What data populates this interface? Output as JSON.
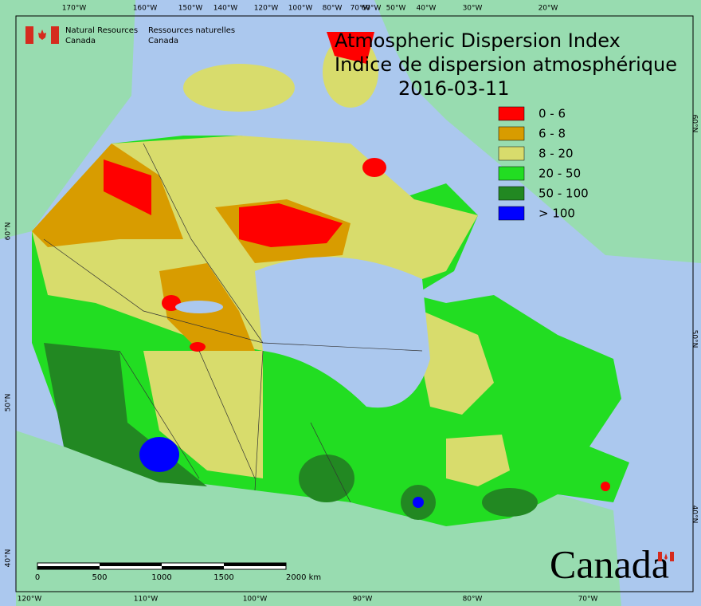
{
  "header": {
    "org_en_1": "Natural Resources",
    "org_en_2": "Canada",
    "org_fr_1": "Ressources naturelles",
    "org_fr_2": "Canada"
  },
  "title": {
    "line1": "Atmospheric Dispersion Index",
    "line2": "Indice de dispersion atmosphérique",
    "date": "2016-03-11"
  },
  "legend": [
    {
      "label": "0 - 6",
      "color": "#ff0000"
    },
    {
      "label": "6 - 8",
      "color": "#d89c00"
    },
    {
      "label": "8 - 20",
      "color": "#d8dc6c"
    },
    {
      "label": "20 - 50",
      "color": "#22dd22"
    },
    {
      "label": "50 - 100",
      "color": "#228822"
    },
    {
      "label": "> 100",
      "color": "#0000ff"
    }
  ],
  "graticule": {
    "top": [
      "170°W",
      "160°W",
      "150°W",
      "140°W",
      "120°W",
      "100°W",
      "80°W",
      "70°W",
      "60°W",
      "50°W",
      "40°W",
      "30°W",
      "20°W"
    ],
    "bottom": [
      "120°W",
      "110°W",
      "100°W",
      "90°W",
      "80°W",
      "70°W"
    ],
    "left": [
      "60°N",
      "50°N",
      "40°N"
    ],
    "right": [
      "60°N",
      "50°N",
      "40°N"
    ]
  },
  "scale_bar": {
    "labels": [
      "0",
      "500",
      "1000",
      "1500",
      "2000 km"
    ]
  },
  "wordmark": "Canada"
}
